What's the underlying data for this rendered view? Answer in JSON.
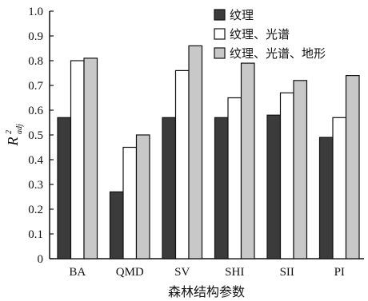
{
  "chart_data": {
    "type": "bar",
    "categories": [
      "BA",
      "QMD",
      "SV",
      "SHI",
      "SII",
      "PI"
    ],
    "series": [
      {
        "name": "纹理",
        "values": [
          0.57,
          0.27,
          0.57,
          0.57,
          0.58,
          0.49
        ],
        "color": "#3b3b3b"
      },
      {
        "name": "纹理、光谱",
        "values": [
          0.8,
          0.45,
          0.76,
          0.65,
          0.67,
          0.57
        ],
        "color": "#ffffff"
      },
      {
        "name": "纹理、光谱、地形",
        "values": [
          0.81,
          0.5,
          0.86,
          0.79,
          0.72,
          0.74
        ],
        "color": "#c8c8c8"
      }
    ],
    "ylim": [
      0,
      1.0
    ],
    "yticks": [
      "0",
      "0.1",
      "0.2",
      "0.3",
      "0.4",
      "0.5",
      "0.6",
      "0.7",
      "0.8",
      "0.9",
      "1.0"
    ],
    "xlabel": "森林结构参数",
    "ylabel": {
      "main": "R",
      "sup": "2",
      "sub": "adj"
    },
    "legend_position": "top-right",
    "grid": false
  }
}
